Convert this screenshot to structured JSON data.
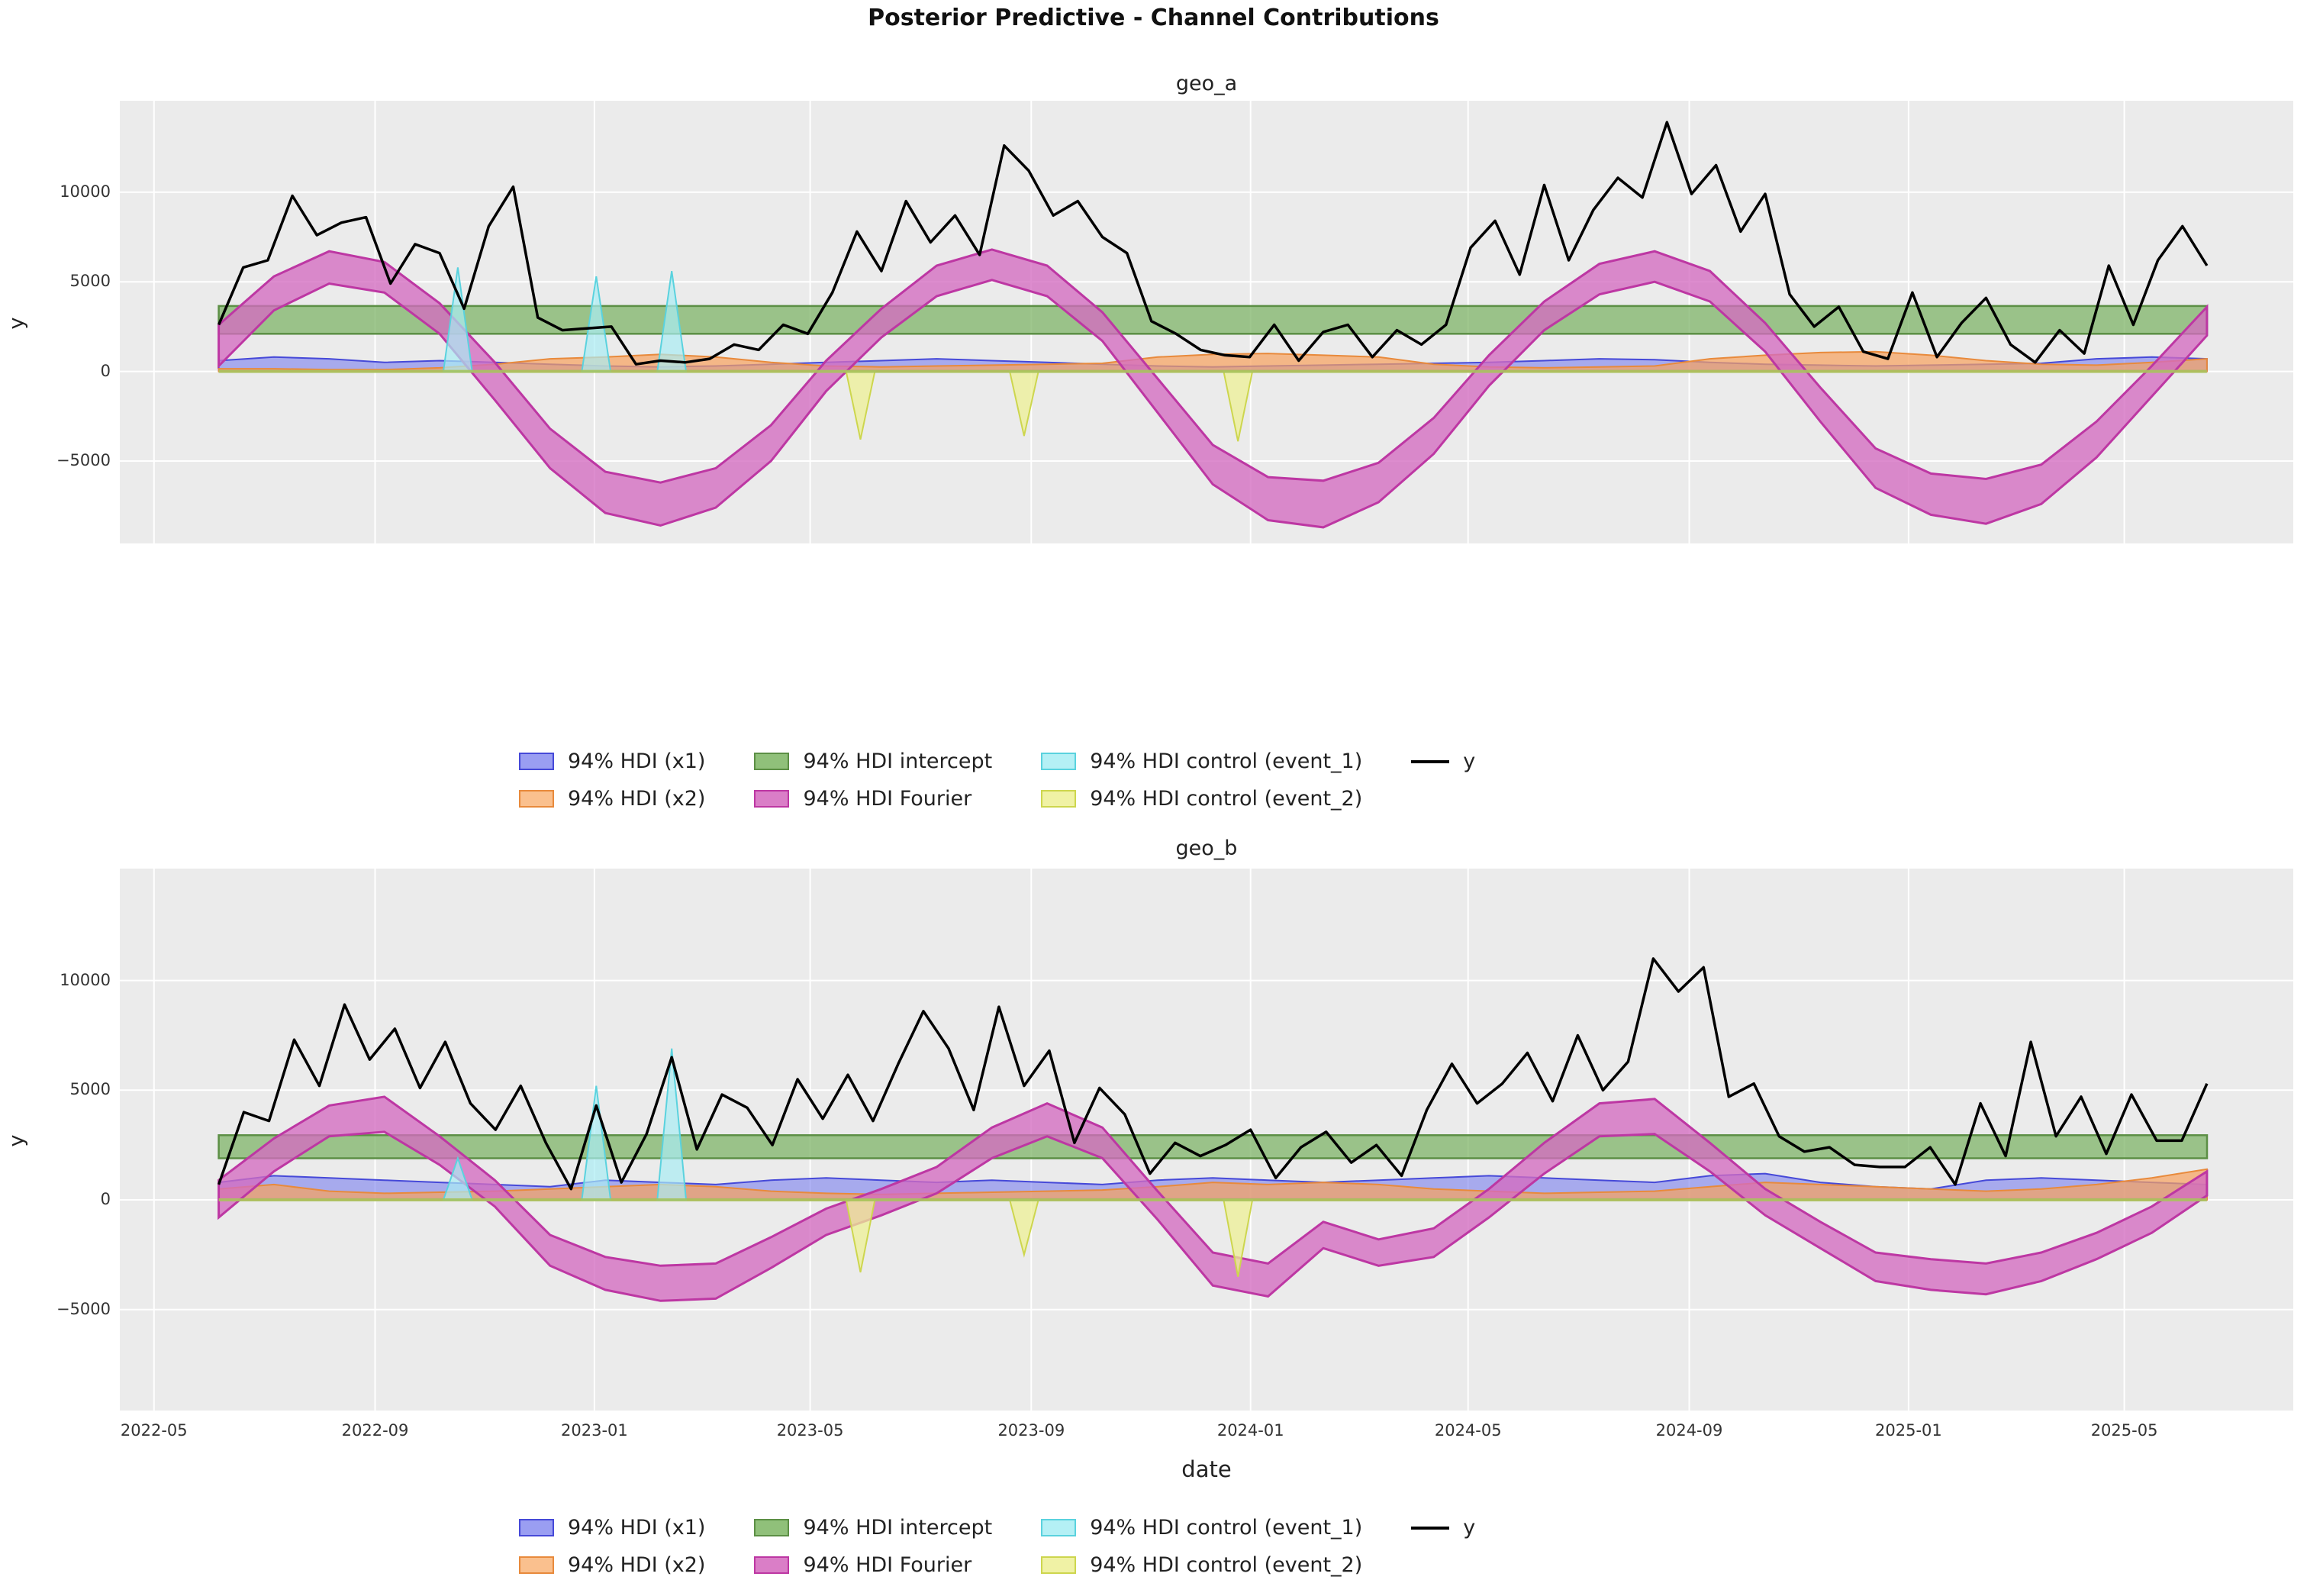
{
  "figure": {
    "title": "Posterior Predictive - Channel Contributions"
  },
  "legend": {
    "labels": {
      "x1": "94% HDI (x1)",
      "x2": "94% HDI (x2)",
      "intercept": "94% HDI intercept",
      "fourier": "94% HDI Fourier",
      "event_1": "94% HDI control (event_1)",
      "event_2": "94% HDI control (event_2)",
      "y": "y"
    }
  },
  "chart_data": {
    "type": "area",
    "title": "Posterior Predictive - Channel Contributions",
    "xlabel": "date",
    "ylabel": "y",
    "grid": true,
    "x_domain": [
      "2022-04-12",
      "2025-08-03"
    ],
    "series_span": [
      "2022-06-06",
      "2025-06-16"
    ],
    "x_tick_dates": [
      "2022-05-01",
      "2022-09-01",
      "2023-01-01",
      "2023-05-01",
      "2023-09-01",
      "2024-01-01",
      "2024-05-01",
      "2024-09-01",
      "2025-01-01",
      "2025-05-01"
    ],
    "x_tick_labels": [
      "2022-05",
      "2022-09",
      "2023-01",
      "2023-05",
      "2023-09",
      "2024-01",
      "2024-05",
      "2024-09",
      "2025-01",
      "2025-05"
    ],
    "y_ticks": [
      -5000,
      0,
      5000,
      10000
    ],
    "ylim": [
      -9600,
      15100
    ],
    "colors": {
      "background": "#ffffff",
      "axes_bg": "#ebebeb",
      "grid": "#ffffff",
      "y_line": "#000000",
      "zero_line": "#a9c35f",
      "x1": {
        "fill": "#7a7fee",
        "alpha": 0.6,
        "edge": "#4649d8",
        "legend_fill": "#9a9ef2"
      },
      "x2": {
        "fill": "#f7a25f",
        "alpha": 0.72,
        "edge": "#e88a3c",
        "legend_fill": "#fac08e"
      },
      "intercept": {
        "fill": "#7fb468",
        "alpha": 0.75,
        "edge": "#5c8f45",
        "legend_fill": "#90c07a"
      },
      "fourier": {
        "fill": "#d36cc0",
        "alpha": 0.78,
        "edge": "#bd37a3",
        "legend_fill": "#da7ec7"
      },
      "event_1": {
        "fill": "#a9edf3",
        "alpha": 0.7,
        "edge": "#5ad2de",
        "legend_fill": "#b4f0f5"
      },
      "event_2": {
        "fill": "#eef096",
        "alpha": 0.75,
        "edge": "#cdd64e",
        "legend_fill": "#f0f2a5"
      }
    },
    "panels": [
      {
        "name": "geo_a",
        "y": [
          2600,
          5800,
          6200,
          9800,
          7600,
          8300,
          8600,
          4900,
          7100,
          6600,
          3500,
          8100,
          10300,
          3000,
          2300,
          2400,
          2500,
          400,
          600,
          500,
          700,
          1500,
          1200,
          2600,
          2100,
          4400,
          7800,
          5600,
          9500,
          7200,
          8700,
          6500,
          12600,
          11200,
          8700,
          9500,
          7500,
          6600,
          2800,
          2100,
          1200,
          900,
          800,
          2600,
          600,
          2200,
          2600,
          800,
          2300,
          1500,
          2600,
          6900,
          8400,
          5400,
          10400,
          6200,
          9000,
          10800,
          9700,
          13900,
          9900,
          11500,
          7800,
          9900,
          4300,
          2500,
          3600,
          1100,
          700,
          4400,
          800,
          2700,
          4100,
          1500,
          500,
          2300,
          1000,
          5900,
          2600,
          6200,
          8100,
          5900
        ],
        "fourier_upper": [
          2600,
          5300,
          6700,
          6100,
          3800,
          500,
          -3200,
          -5600,
          -6200,
          -5400,
          -3000,
          600,
          3500,
          5900,
          6800,
          5900,
          3300,
          -400,
          -4100,
          -5900,
          -6100,
          -5100,
          -2600,
          900,
          3900,
          6000,
          6700,
          5600,
          2700,
          -900,
          -4300,
          -5700,
          -6000,
          -5200,
          -2800,
          300,
          3600
        ],
        "fourier_lower": [
          300,
          3400,
          4900,
          4400,
          2100,
          -1600,
          -5400,
          -7900,
          -8600,
          -7600,
          -5000,
          -1100,
          1900,
          4200,
          5100,
          4200,
          1700,
          -2300,
          -6300,
          -8300,
          -8700,
          -7300,
          -4600,
          -800,
          2300,
          4300,
          5000,
          3900,
          1100,
          -2800,
          -6500,
          -8000,
          -8500,
          -7400,
          -4800,
          -1400,
          2000
        ],
        "x1_top": [
          600,
          800,
          700,
          500,
          600,
          500,
          400,
          300,
          250,
          300,
          400,
          500,
          600,
          700,
          600,
          500,
          400,
          300,
          250,
          300,
          350,
          400,
          450,
          500,
          600,
          700,
          650,
          500,
          400,
          350,
          300,
          350,
          400,
          450,
          700,
          800,
          700
        ],
        "x2_top": [
          150,
          150,
          100,
          100,
          200,
          400,
          700,
          800,
          950,
          800,
          500,
          300,
          250,
          300,
          350,
          400,
          450,
          800,
          950,
          1000,
          900,
          800,
          400,
          250,
          200,
          250,
          300,
          700,
          900,
          1050,
          1100,
          900,
          600,
          400,
          350,
          500,
          700
        ],
        "intercept": [
          2100,
          3650
        ],
        "event_1": [
          {
            "date": "2022-10-17",
            "value": 5800
          },
          {
            "date": "2023-01-02",
            "value": 5300
          },
          {
            "date": "2023-02-13",
            "value": 5600
          }
        ],
        "event_2": [
          {
            "date": "2023-05-29",
            "value": -3800
          },
          {
            "date": "2023-08-28",
            "value": -3600
          },
          {
            "date": "2023-12-25",
            "value": -3900
          }
        ]
      },
      {
        "name": "geo_b",
        "y": [
          700,
          4000,
          3600,
          7300,
          5200,
          8900,
          6400,
          7800,
          5100,
          7200,
          4400,
          3200,
          5200,
          2600,
          500,
          4300,
          800,
          3000,
          6500,
          2300,
          4800,
          4200,
          2500,
          5500,
          3700,
          5700,
          3600,
          6200,
          8600,
          6900,
          4100,
          8800,
          5200,
          6800,
          2600,
          5100,
          3900,
          1200,
          2600,
          2000,
          2500,
          3200,
          1000,
          2400,
          3100,
          1700,
          2500,
          1100,
          4100,
          6200,
          4400,
          5300,
          6700,
          4500,
          7500,
          5000,
          6300,
          11000,
          9500,
          10600,
          4700,
          5300,
          2900,
          2200,
          2400,
          1600,
          1500,
          1500,
          2400,
          700,
          4400,
          2000,
          7200,
          2900,
          4700,
          2100,
          4800,
          2700,
          2700,
          5300
        ],
        "fourier_upper": [
          900,
          2800,
          4300,
          4700,
          2900,
          900,
          -1600,
          -2600,
          -3000,
          -2900,
          -1700,
          -400,
          500,
          1500,
          3300,
          4400,
          3300,
          400,
          -2400,
          -2900,
          -1000,
          -1800,
          -1300,
          500,
          2600,
          4400,
          4600,
          2600,
          500,
          -1000,
          -2400,
          -2700,
          -2900,
          -2400,
          -1500,
          -300,
          1300
        ],
        "fourier_lower": [
          -800,
          1300,
          2900,
          3100,
          1600,
          -300,
          -3000,
          -4100,
          -4600,
          -4500,
          -3100,
          -1600,
          -700,
          300,
          1900,
          2900,
          1900,
          -900,
          -3900,
          -4400,
          -2200,
          -3000,
          -2600,
          -800,
          1200,
          2900,
          3000,
          1300,
          -700,
          -2200,
          -3700,
          -4100,
          -4300,
          -3700,
          -2700,
          -1500,
          200
        ],
        "x1_top": [
          800,
          1100,
          1000,
          900,
          800,
          700,
          600,
          900,
          800,
          700,
          900,
          1000,
          900,
          800,
          900,
          800,
          700,
          900,
          1000,
          900,
          800,
          900,
          1000,
          1100,
          1000,
          900,
          800,
          1100,
          1200,
          800,
          600,
          500,
          900,
          1000,
          900,
          800,
          700
        ],
        "x2_top": [
          500,
          700,
          400,
          300,
          350,
          400,
          500,
          600,
          700,
          600,
          400,
          300,
          250,
          300,
          350,
          400,
          450,
          600,
          800,
          700,
          800,
          700,
          500,
          400,
          300,
          350,
          400,
          600,
          800,
          700,
          600,
          500,
          400,
          500,
          700,
          1000,
          1400
        ],
        "intercept": [
          1900,
          2950
        ],
        "event_1": [
          {
            "date": "2022-10-17",
            "value": 1900
          },
          {
            "date": "2023-01-02",
            "value": 5200
          },
          {
            "date": "2023-02-13",
            "value": 6900
          }
        ],
        "event_2": [
          {
            "date": "2023-05-29",
            "value": -3300
          },
          {
            "date": "2023-08-28",
            "value": -2500
          },
          {
            "date": "2023-12-25",
            "value": -3500
          }
        ]
      }
    ]
  }
}
